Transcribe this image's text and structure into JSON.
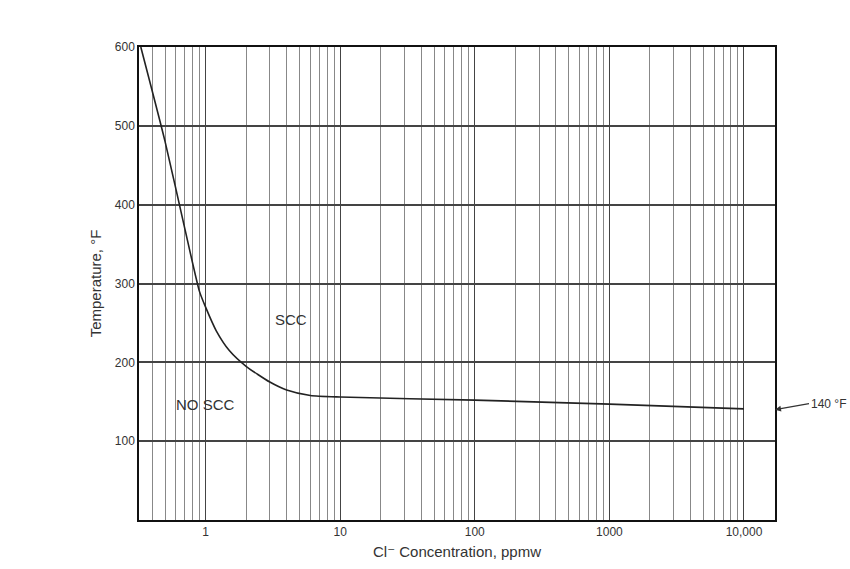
{
  "chart_data": {
    "type": "line",
    "x_label": "Cl⁻ Concentration, ppmw",
    "y_label": "Temperature, °F",
    "log": "x",
    "grid": true,
    "color": "#222222",
    "x": [
      0.33,
      0.5,
      0.7,
      0.9,
      1,
      1.2,
      1.5,
      2,
      3,
      4,
      6,
      10,
      100,
      1000,
      10000
    ],
    "values": [
      600,
      480,
      370,
      290,
      270,
      240,
      215,
      195,
      175,
      165,
      158,
      156,
      152,
      147,
      141
    ],
    "xlim": [
      0.32,
      17000
    ],
    "xticks": [
      1,
      10,
      100,
      1000,
      {
        "value": 10000,
        "label": "10,000"
      }
    ],
    "ylim": [
      0,
      600
    ],
    "yticks": [
      100,
      200,
      300,
      400,
      500,
      600
    ],
    "annotations": [
      {
        "text": "SCC",
        "x": 4.3,
        "y": 254
      },
      {
        "text": "NO SCC",
        "x": 1,
        "y": 147
      }
    ],
    "callout": {
      "text": "140 °F",
      "x": 17000,
      "y": 140
    }
  }
}
